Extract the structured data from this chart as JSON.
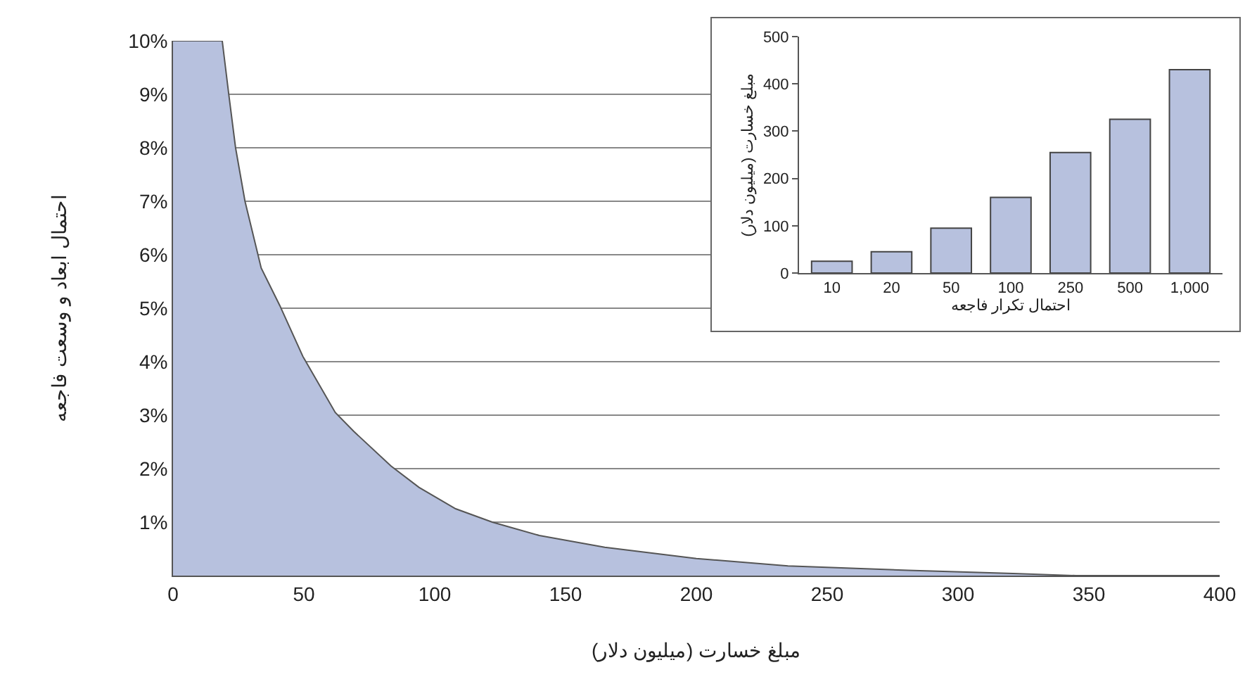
{
  "chart_data": [
    {
      "type": "area",
      "xlabel": "مبلغ خسارت (میلیون دلار)",
      "ylabel": "احتمال ابعاد و وسعت فاجعه",
      "color": "#b7c1de",
      "x": [
        0,
        18.8,
        21.3,
        23.9,
        27.5,
        33.7,
        40.8,
        49.6,
        62,
        69,
        83.3,
        94,
        108,
        122,
        140,
        165,
        200,
        235,
        281,
        321,
        345,
        400
      ],
      "values": [
        10,
        10,
        9,
        8,
        7,
        5.75,
        5.05,
        4.1,
        3.05,
        2.7,
        2.05,
        1.65,
        1.25,
        1,
        0.75,
        0.53,
        0.32,
        0.18,
        0.1,
        0.04,
        0,
        0
      ],
      "xlim": [
        0,
        400
      ],
      "xticks": [
        0,
        50,
        100,
        150,
        200,
        250,
        300,
        350,
        400
      ],
      "ylim": [
        0,
        10
      ],
      "yticks": [
        {
          "value": 1,
          "label": "1%"
        },
        {
          "value": 2,
          "label": "2%"
        },
        {
          "value": 3,
          "label": "3%"
        },
        {
          "value": 4,
          "label": "4%"
        },
        {
          "value": 5,
          "label": "5%"
        },
        {
          "value": 6,
          "label": "6%"
        },
        {
          "value": 7,
          "label": "7%"
        },
        {
          "value": 8,
          "label": "8%"
        },
        {
          "value": 9,
          "label": "9%"
        },
        {
          "value": 10,
          "label": "10%"
        }
      ],
      "grid": "y",
      "legend": false
    },
    {
      "type": "bar",
      "xlabel": "احتمال تکرار فاجعه",
      "ylabel": "مبلغ خسارت (میلیون دلار)",
      "color": "#b7c1de",
      "categories": [
        "10",
        "20",
        "50",
        "100",
        "250",
        "500",
        "1,000"
      ],
      "values": [
        25,
        45,
        95,
        160,
        255,
        325,
        430
      ],
      "ylim": [
        0,
        500
      ],
      "yticks": [
        0,
        100,
        200,
        300,
        400,
        500
      ],
      "grid": false,
      "legend": false
    }
  ]
}
